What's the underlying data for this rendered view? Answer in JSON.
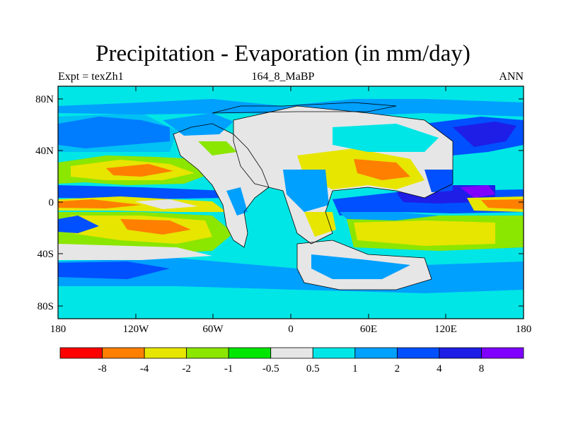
{
  "title": "Precipitation - Evaporation (in mm/day)",
  "subtitle_left": "Expt = texZh1",
  "subtitle_center": "164_8_MaBP",
  "subtitle_right": "ANN",
  "chart_data": {
    "type": "heatmap",
    "projection": "cylindrical-equidistant",
    "xlim": [
      -180,
      180
    ],
    "ylim": [
      -90,
      90
    ],
    "x_ticks": [
      "180",
      "120W",
      "60W",
      "0",
      "60E",
      "120E",
      "180"
    ],
    "y_ticks": [
      "80N",
      "40N",
      "0",
      "40S",
      "80S"
    ],
    "colorbar": {
      "colors": [
        "#ff0000",
        "#ff7f00",
        "#e6e600",
        "#8be600",
        "#00e600",
        "#e6e6e6",
        "#00e6e6",
        "#00a0ff",
        "#0050ff",
        "#1e1ee6",
        "#7f00ff"
      ],
      "labels": [
        "-8",
        "-4",
        "-2",
        "-1",
        "-0.5",
        "0.5",
        "1",
        "2",
        "4",
        "8"
      ]
    }
  }
}
